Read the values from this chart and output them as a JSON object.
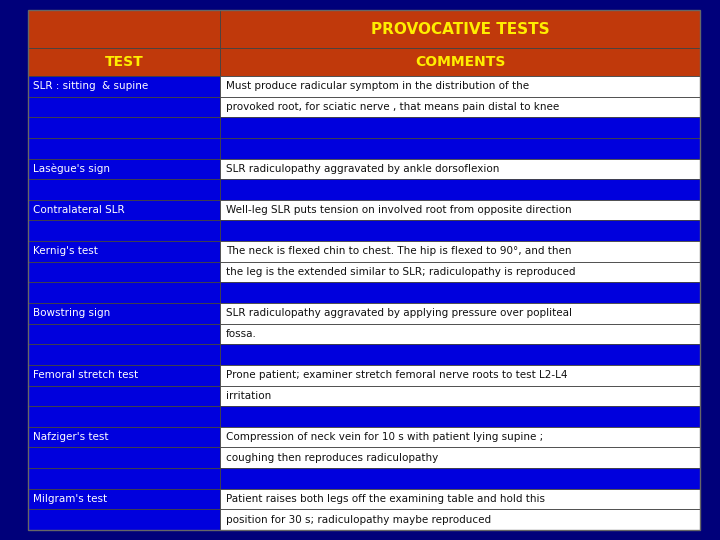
{
  "title": "PROVOCATIVE TESTS",
  "col1_header": "TEST",
  "col2_header": "COMMENTS",
  "rows": [
    [
      "SLR : sitting  & supine",
      "Must produce radicular symptom in the distribution of the"
    ],
    [
      "",
      "provoked root, for sciatic nerve , that means pain distal to knee"
    ],
    [
      "",
      ""
    ],
    [
      "",
      ""
    ],
    [
      "Lasègue's sign",
      "SLR radiculopathy aggravated by ankle dorsoflexion"
    ],
    [
      "",
      ""
    ],
    [
      "Contralateral SLR",
      "Well-leg SLR puts tension on involved root from opposite direction"
    ],
    [
      "",
      ""
    ],
    [
      "Kernig's test",
      "The neck is flexed chin to chest. The hip is flexed to 90°, and then"
    ],
    [
      "",
      "the leg is the extended similar to SLR; radiculopathy is reproduced"
    ],
    [
      "",
      ""
    ],
    [
      "Bowstring sign",
      "SLR radiculopathy aggravated by applying pressure over popliteal"
    ],
    [
      "",
      "fossa."
    ],
    [
      "",
      ""
    ],
    [
      "Femoral stretch test",
      "Prone patient; examiner stretch femoral nerve roots to test L2-L4"
    ],
    [
      "",
      "irritation"
    ],
    [
      "",
      ""
    ],
    [
      "Nafziger's test",
      "Compression of neck vein for 10 s with patient lying supine ;"
    ],
    [
      "",
      "coughing then reproduces radiculopathy"
    ],
    [
      "",
      ""
    ],
    [
      "Milgram's test",
      "Patient raises both legs off the examining table and hold this"
    ],
    [
      "",
      "position for 30 s; radiculopathy maybe reproduced"
    ]
  ],
  "header_bg": "#c0390b",
  "title_bg": "#c0390b",
  "row_bg_blue": "#0000dd",
  "row_bg_white": "#ffffff",
  "header_text_color": "#ffee00",
  "test_text_color": "#ffffff",
  "comment_text_color": "#111111",
  "outer_bg": "#00007a",
  "title_fontsize": 11,
  "header_fontsize": 10,
  "cell_fontsize": 7.5
}
